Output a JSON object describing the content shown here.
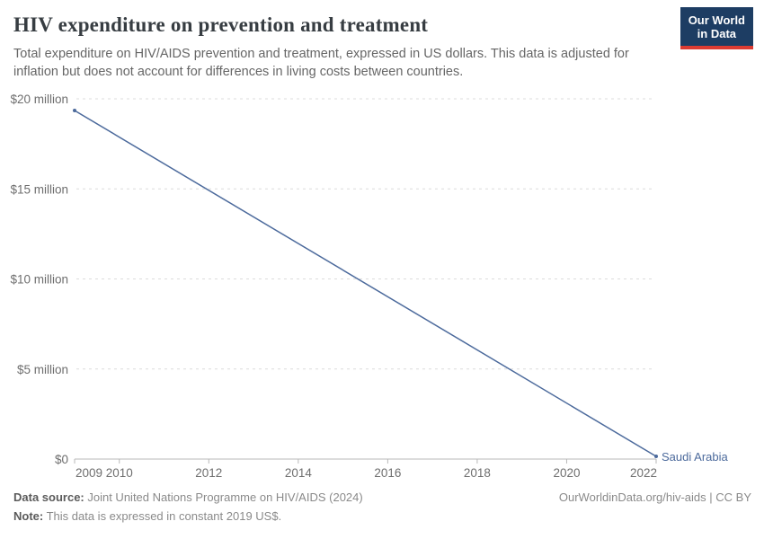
{
  "header": {
    "title": "HIV expenditure on prevention and treatment",
    "subtitle": "Total expenditure on HIV/AIDS prevention and treatment, expressed in US dollars. This data is adjusted for inflation but does not account for differences in living costs between countries.",
    "logo": {
      "line1": "Our World",
      "line2": "in Data"
    }
  },
  "chart_data": {
    "type": "line",
    "title": "HIV expenditure on prevention and treatment",
    "series": [
      {
        "name": "Saudi Arabia",
        "x": [
          2009,
          2022
        ],
        "values_usd": [
          19350000,
          150000
        ]
      }
    ],
    "xlim": [
      2009,
      2022
    ],
    "ylim": [
      0,
      20000000
    ],
    "x_ticks": [
      2009,
      2010,
      2012,
      2014,
      2016,
      2018,
      2020,
      2022
    ],
    "y_ticks": [
      {
        "value": 0,
        "label": "$0"
      },
      {
        "value": 5000000,
        "label": "$5 million"
      },
      {
        "value": 10000000,
        "label": "$10 million"
      },
      {
        "value": 15000000,
        "label": "$15 million"
      },
      {
        "value": 20000000,
        "label": "$20 million"
      }
    ],
    "grid": "horizontal-dashed",
    "legend_position": "end-of-line-label",
    "colors": {
      "line": "#4c6a9c",
      "grid": "#dcdcdc",
      "axis": "#b9b9b9",
      "tick_label": "#6e6e6e"
    }
  },
  "footer": {
    "data_source_label": "Data source:",
    "data_source_text": " Joint United Nations Programme on HIV/AIDS (2024)",
    "note_label": "Note:",
    "note_text": " This data is expressed in constant 2019 US$.",
    "link_text": "OurWorldinData.org/hiv-aids | CC BY"
  },
  "colors": {
    "logo_bg": "#1d3d63",
    "logo_stripe": "#dc3b32",
    "accent": "#4c6a9c"
  }
}
